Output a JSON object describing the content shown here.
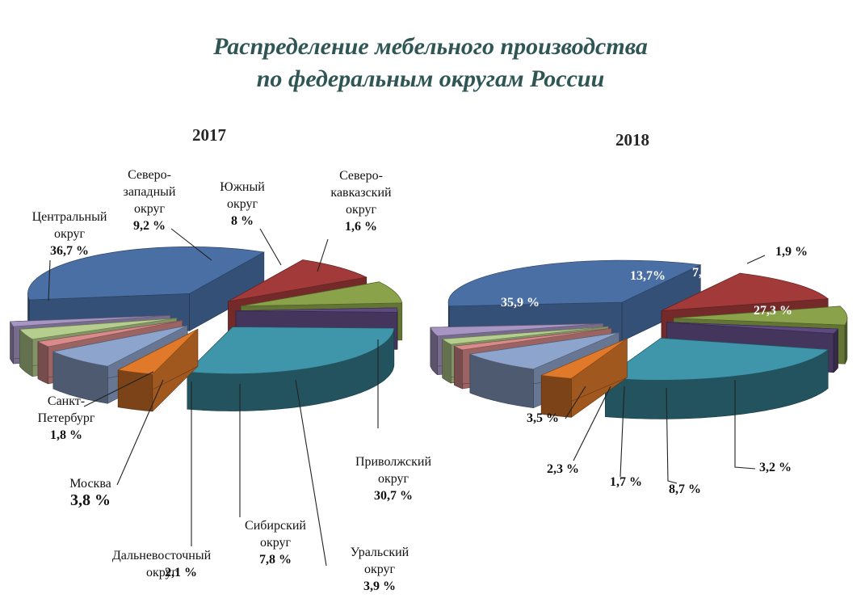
{
  "title_line1": "Распределение мебельного производства",
  "title_line2": "по федеральным округам России",
  "chart_data": [
    {
      "type": "pie",
      "year": "2017",
      "slices": [
        {
          "label": "Центральный округ",
          "value": 36.7,
          "value_text": "36,7 %",
          "color": "#4a6fa5"
        },
        {
          "label": "Северо-западный округ",
          "value": 9.2,
          "value_text": "9,2 %",
          "color": "#a33a3a"
        },
        {
          "label": "Южный округ",
          "value": 8,
          "value_text": "8 %",
          "color": "#8aa24a"
        },
        {
          "label": "Северо-кавказский округ",
          "value": 1.6,
          "value_text": "1,6 %",
          "color": "#5e4a80"
        },
        {
          "label": "Приволжский округ",
          "value": 30.7,
          "value_text": "30,7 %",
          "color": "#3f96aa"
        },
        {
          "label": "Уральский округ",
          "value": 3.9,
          "value_text": "3,9 %",
          "color": "#e07a2a"
        },
        {
          "label": "Сибирский округ",
          "value": 7.8,
          "value_text": "7,8 %",
          "color": "#8da4cc"
        },
        {
          "label": "Дальневосточный округ",
          "value": 2.1,
          "value_text": "2,1 %",
          "color": "#d98a8a"
        },
        {
          "label": "Москва",
          "value": 3.8,
          "value_text": "3,8 %",
          "color": "#b5ce8e"
        },
        {
          "label": "Санкт-Петербург",
          "value": 1.8,
          "value_text": "1,8 %",
          "color": "#a796c4"
        }
      ]
    },
    {
      "type": "pie",
      "year": "2018",
      "slices": [
        {
          "value": 35.9,
          "value_text": "35,9 %",
          "color": "#4a6fa5"
        },
        {
          "value": 13.7,
          "value_text": "13,7%",
          "color": "#a33a3a"
        },
        {
          "value": 7.6,
          "value_text": "7,6 %",
          "color": "#8aa24a"
        },
        {
          "value": 1.9,
          "value_text": "1,9 %",
          "color": "#5e4a80"
        },
        {
          "value": 27.3,
          "value_text": "27,3 %",
          "color": "#3f96aa"
        },
        {
          "value": 3.2,
          "value_text": "3,2 %",
          "color": "#e07a2a"
        },
        {
          "value": 8.7,
          "value_text": "8,7 %",
          "color": "#8da4cc"
        },
        {
          "value": 1.7,
          "value_text": "1,7 %",
          "color": "#d98a8a"
        },
        {
          "value": 2.3,
          "value_text": "2,3 %",
          "color": "#b5ce8e"
        },
        {
          "value": 3.5,
          "value_text": "3,5 %",
          "color": "#a796c4"
        }
      ]
    }
  ]
}
